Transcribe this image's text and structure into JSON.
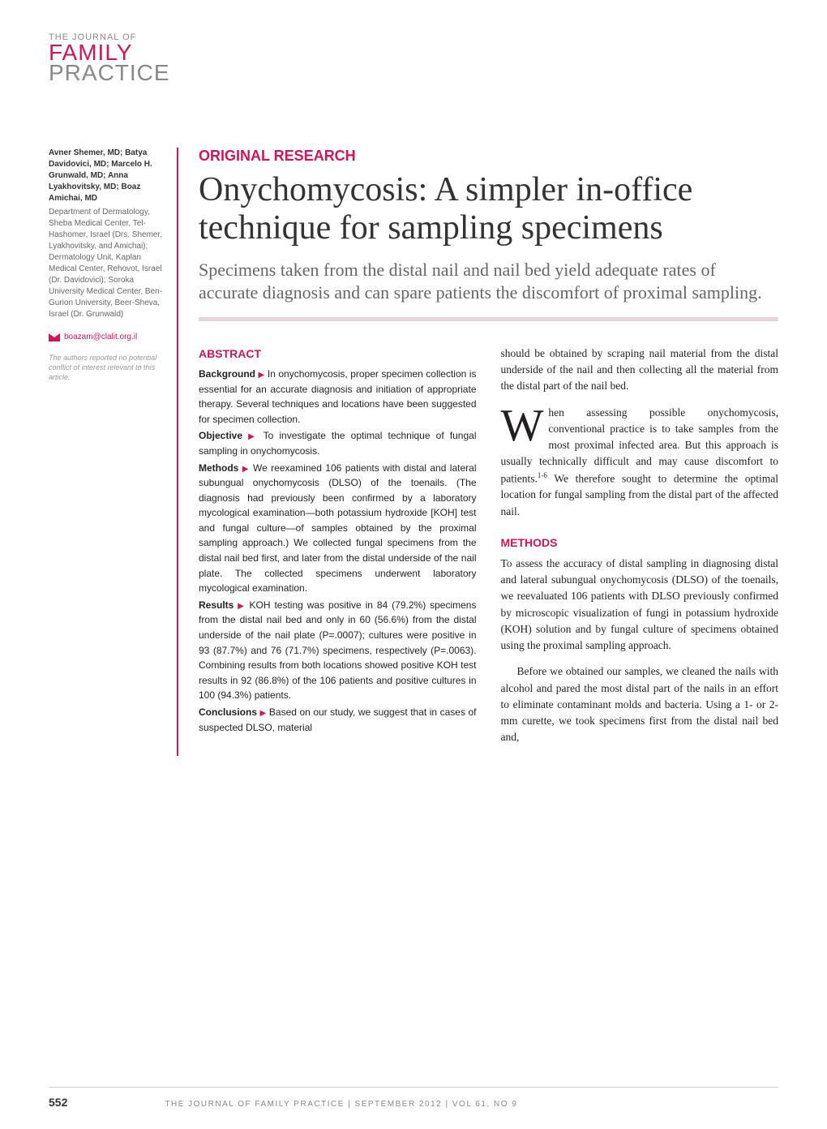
{
  "logo": {
    "top": "THE JOURNAL OF",
    "line1": "FAMILY",
    "line2": "PRACTICE"
  },
  "sidebar": {
    "authors": "Avner Shemer, MD; Batya Davidovici, MD; Marcelo H. Grunwald, MD; Anna Lyakhovitsky, MD; Boaz Amichai, MD",
    "affiliations": "Department of Dermatology, Sheba Medical Center, Tel-Hashomer, Israel (Drs. Shemer, Lyakhovitsky, and Amichai); Dermatology Unit, Kaplan Medical Center, Rehovot, Israel (Dr. Davidovici); Soroka University Medical Center, Ben-Gurion University, Beer-Sheva, Israel (Dr. Grunwald)",
    "email": "boazam@clalit.org.il",
    "disclosure": "The authors reported no potential conflict of interest relevant to this article."
  },
  "article": {
    "sectionLabel": "ORIGINAL RESEARCH",
    "title": "Onychomycosis: A simpler in-office technique for sampling specimens",
    "subtitle": "Specimens taken from the distal nail and nail bed yield adequate rates of accurate diagnosis and can spare patients the discomfort of proximal sampling."
  },
  "abstract": {
    "heading": "ABSTRACT",
    "background": {
      "label": "Background",
      "text": "In onychomycosis, proper specimen collection is essential for an accurate diagnosis and initiation of appropriate therapy. Several techniques and locations have been suggested for specimen collection."
    },
    "objective": {
      "label": "Objective",
      "text": "To investigate the optimal technique of fungal sampling in onychomycosis."
    },
    "methods": {
      "label": "Methods",
      "text": "We reexamined 106 patients with distal and lateral subungual onychomycosis (DLSO) of the toenails. (The diagnosis had previously been confirmed by a laboratory mycological examination—both potassium hydroxide [KOH] test and fungal culture—of samples obtained by the proximal sampling approach.) We collected fungal specimens from the distal nail bed first, and later from the distal underside of the nail plate. The collected specimens underwent laboratory mycological examination."
    },
    "results": {
      "label": "Results",
      "text": "KOH testing was positive in 84 (79.2%) specimens from the distal nail bed and only in 60 (56.6%) from the distal underside of the nail plate (P=.0007); cultures were positive in 93 (87.7%) and 76 (71.7%) specimens, respectively (P=.0063). Combining results from both locations showed positive KOH test results in 92 (86.8%) of the 106 patients and positive cultures in 100 (94.3%) patients."
    },
    "conclusions": {
      "label": "Conclusions",
      "text": "Based on our study, we suggest that in cases of suspected DLSO, material"
    }
  },
  "body": {
    "p1": "should be obtained by scraping nail material from the distal underside of the nail and then collecting all the material from the distal part of the nail bed.",
    "intro": "hen assessing possible onychomycosis, conventional practice is to take samples from the most proximal infected area. But this approach is usually technically difficult and may cause discomfort to patients.",
    "introCite": "1-6",
    "introCont": " We therefore sought to determine the optimal location for fungal sampling from the distal part of the affected nail.",
    "methodsHeading": "METHODS",
    "m1": "To assess the accuracy of distal sampling in diagnosing distal and lateral subungual onychomycosis (DLSO) of the toenails, we reevaluated 106 patients with DLSO previously confirmed by microscopic visualization of fungi in potassium hydroxide (KOH) solution and by fungal culture of specimens obtained using the proximal sampling approach.",
    "m2": "Before we obtained our samples, we cleaned the nails with alcohol and pared the most distal part of the nails in an effort to eliminate contaminant molds and bacteria. Using a 1- or 2-mm curette, we took specimens first from the distal nail bed and,"
  },
  "footer": {
    "pageNum": "552",
    "text": "THE JOURNAL OF FAMILY PRACTICE  |  SEPTEMBER 2012  |  VOL 61, NO 9"
  },
  "colors": {
    "accent": "#d4145a",
    "grey": "#888888",
    "lightbar": "#e8d4dc"
  }
}
